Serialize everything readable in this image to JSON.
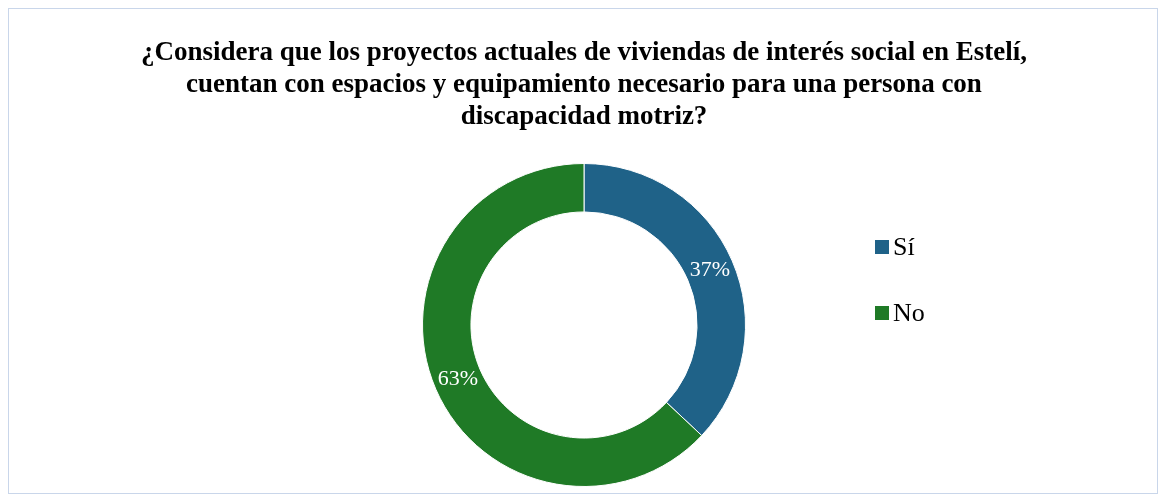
{
  "chart_data": {
    "type": "donut",
    "title": "¿Considera que los proyectos actuales de viviendas de interés social en Estelí, cuentan con espacios y equipamiento necesario para una persona con discapacidad motriz?",
    "categories": [
      "Sí",
      "No"
    ],
    "values": [
      37,
      63
    ],
    "colors": [
      "#1f6288",
      "#1f7a26"
    ],
    "value_labels": [
      "37%",
      "63%"
    ],
    "legend": "right"
  }
}
